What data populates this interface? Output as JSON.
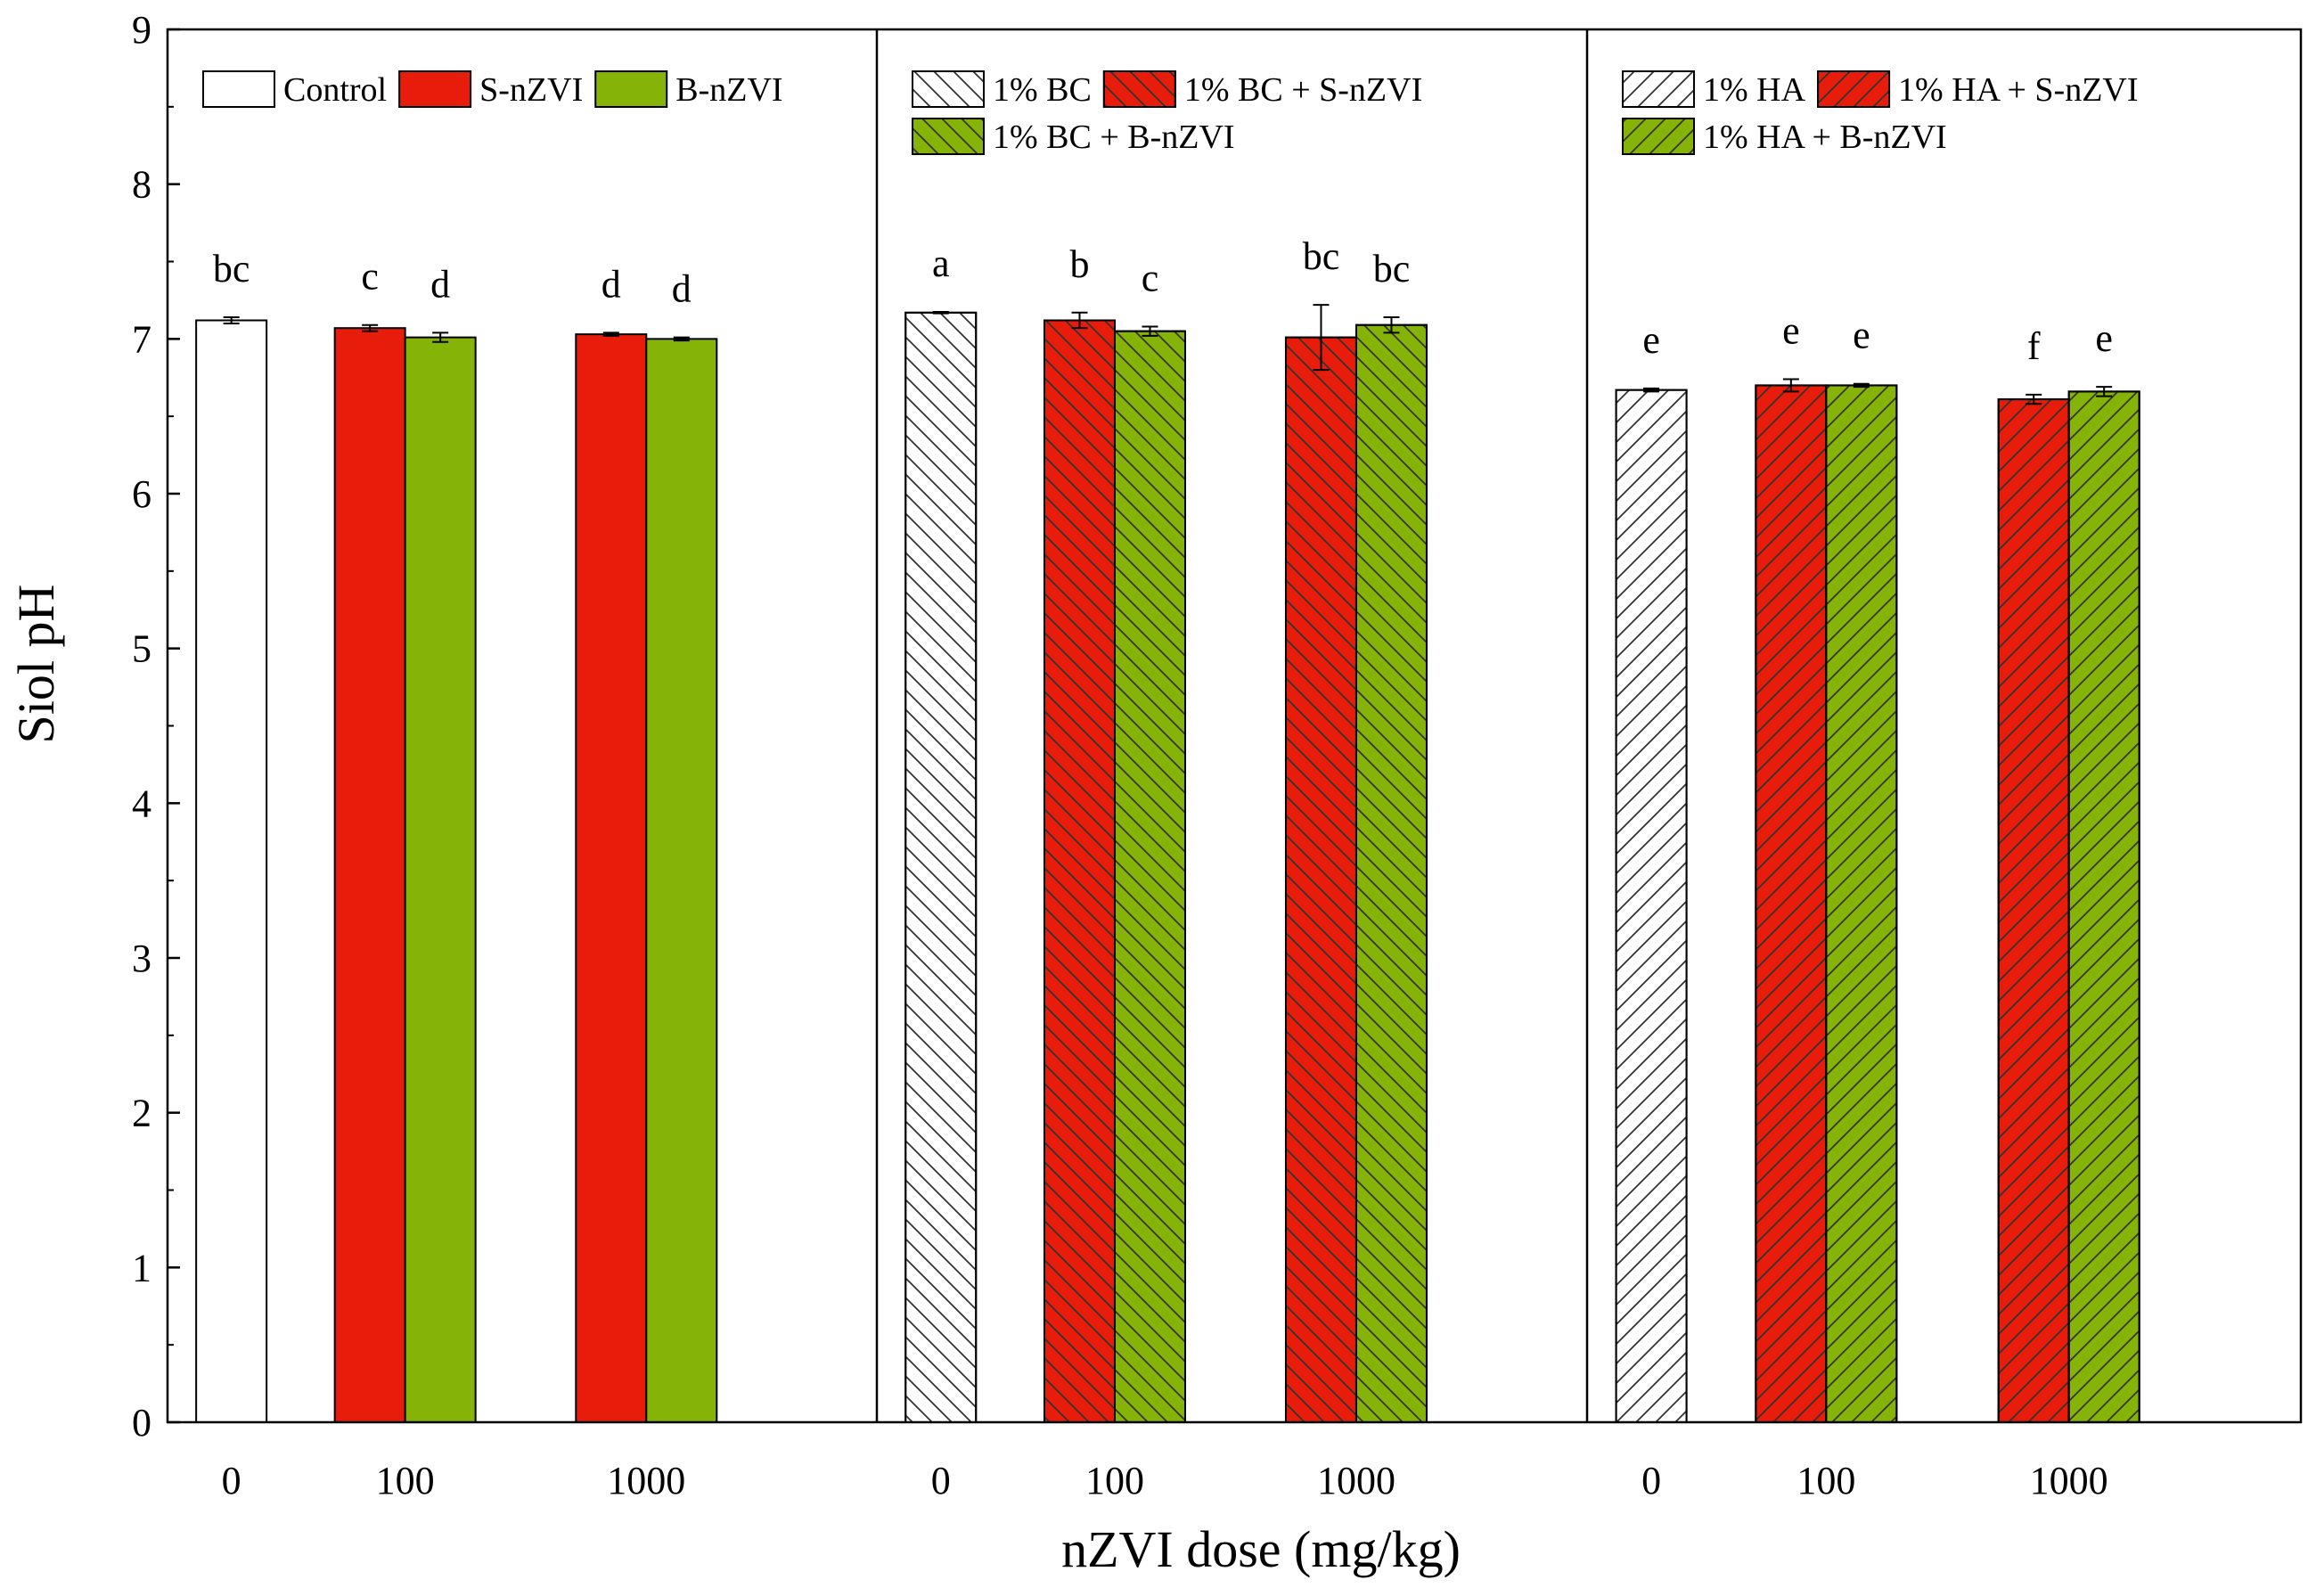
{
  "colors": {
    "white": "#ffffff",
    "red": "#e81c0b",
    "green": "#86b307",
    "axis": "#000000"
  },
  "chart_data": {
    "type": "bar",
    "ylabel": "Siol pH",
    "xlabel": "nZVI dose (mg/kg)",
    "ylim": [
      0,
      9
    ],
    "yticks": [
      0,
      1,
      2,
      3,
      4,
      5,
      6,
      7,
      8,
      9
    ],
    "panels": [
      {
        "name": "no-amendment",
        "tick_labels": [
          "0",
          "100",
          "1000"
        ],
        "legend": [
          {
            "label": "Control",
            "fill": "white",
            "hatch": "none"
          },
          {
            "label": "S-nZVI",
            "fill": "red",
            "hatch": "none"
          },
          {
            "label": "B-nZVI",
            "fill": "green",
            "hatch": "none"
          }
        ],
        "bars": [
          {
            "series": "Control",
            "dose": "0",
            "value": 7.12,
            "error": 0.02,
            "letter": "bc",
            "fill": "white",
            "hatch": "none"
          },
          {
            "series": "S-nZVI",
            "dose": "100",
            "value": 7.07,
            "error": 0.02,
            "letter": "c",
            "fill": "red",
            "hatch": "none"
          },
          {
            "series": "B-nZVI",
            "dose": "100",
            "value": 7.01,
            "error": 0.03,
            "letter": "d",
            "fill": "green",
            "hatch": "none"
          },
          {
            "series": "S-nZVI",
            "dose": "1000",
            "value": 7.03,
            "error": 0.01,
            "letter": "d",
            "fill": "red",
            "hatch": "none"
          },
          {
            "series": "B-nZVI",
            "dose": "1000",
            "value": 7.0,
            "error": 0.01,
            "letter": "d",
            "fill": "green",
            "hatch": "none"
          }
        ]
      },
      {
        "name": "biochar",
        "tick_labels": [
          "0",
          "100",
          "1000"
        ],
        "legend": [
          {
            "label": "1% BC",
            "fill": "white",
            "hatch": "back"
          },
          {
            "label": "1% BC + S-nZVI",
            "fill": "red",
            "hatch": "back"
          },
          {
            "label": "1% BC + B-nZVI",
            "fill": "green",
            "hatch": "back"
          }
        ],
        "bars": [
          {
            "series": "1% BC",
            "dose": "0",
            "value": 7.17,
            "error": 0.005,
            "letter": "a",
            "fill": "white",
            "hatch": "back"
          },
          {
            "series": "1% BC + S-nZVI",
            "dose": "100",
            "value": 7.12,
            "error": 0.05,
            "letter": "b",
            "fill": "red",
            "hatch": "back"
          },
          {
            "series": "1% BC + B-nZVI",
            "dose": "100",
            "value": 7.05,
            "error": 0.03,
            "letter": "c",
            "fill": "green",
            "hatch": "back"
          },
          {
            "series": "1% BC + S-nZVI",
            "dose": "1000",
            "value": 7.01,
            "error": 0.21,
            "letter": "bc",
            "fill": "red",
            "hatch": "back"
          },
          {
            "series": "1% BC + B-nZVI",
            "dose": "1000",
            "value": 7.09,
            "error": 0.05,
            "letter": "bc",
            "fill": "green",
            "hatch": "back"
          }
        ]
      },
      {
        "name": "humic-acid",
        "tick_labels": [
          "0",
          "100",
          "1000"
        ],
        "legend": [
          {
            "label": "1% HA",
            "fill": "white",
            "hatch": "fwd"
          },
          {
            "label": "1% HA + S-nZVI",
            "fill": "red",
            "hatch": "fwd"
          },
          {
            "label": "1% HA + B-nZVI",
            "fill": "green",
            "hatch": "fwd"
          }
        ],
        "bars": [
          {
            "series": "1% HA",
            "dose": "0",
            "value": 6.67,
            "error": 0.01,
            "letter": "e",
            "fill": "white",
            "hatch": "fwd"
          },
          {
            "series": "1% HA + S-nZVI",
            "dose": "100",
            "value": 6.7,
            "error": 0.04,
            "letter": "e",
            "fill": "red",
            "hatch": "fwd"
          },
          {
            "series": "1% HA + B-nZVI",
            "dose": "100",
            "value": 6.7,
            "error": 0.01,
            "letter": "e",
            "fill": "green",
            "hatch": "fwd"
          },
          {
            "series": "1% HA + S-nZVI",
            "dose": "1000",
            "value": 6.61,
            "error": 0.03,
            "letter": "f",
            "fill": "red",
            "hatch": "fwd"
          },
          {
            "series": "1% HA + B-nZVI",
            "dose": "1000",
            "value": 6.66,
            "error": 0.03,
            "letter": "e",
            "fill": "green",
            "hatch": "fwd"
          }
        ]
      }
    ]
  }
}
